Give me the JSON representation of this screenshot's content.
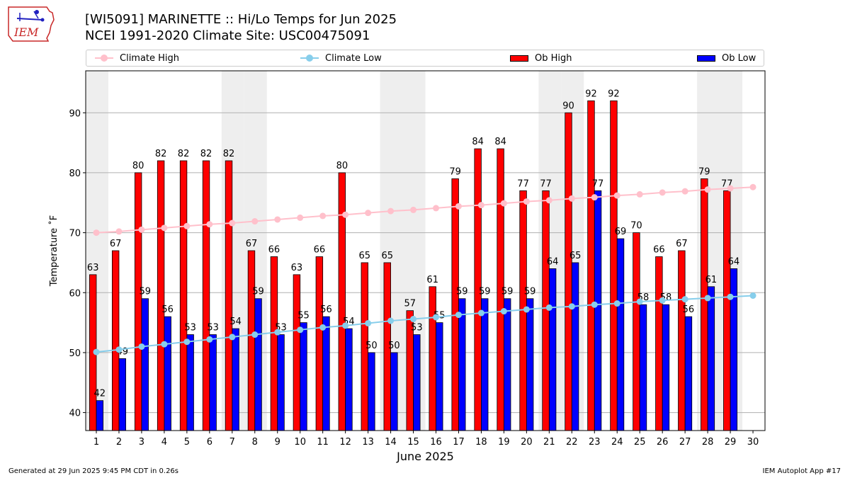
{
  "header": {
    "title": "[WI5091] MARINETTE :: Hi/Lo Temps for Jun 2025",
    "subtitle": "NCEI 1991-2020 Climate Site: USC00475091",
    "logo_text": "IEM"
  },
  "legend": {
    "climate_high": "Climate High",
    "climate_low": "Climate Low",
    "ob_high": "Ob High",
    "ob_low": "Ob Low"
  },
  "footer": {
    "left": "Generated at 29 Jun 2025 9:45 PM CDT in 0.26s",
    "right": "IEM Autoplot App #17"
  },
  "colors": {
    "ob_high": "#ff0000",
    "ob_low": "#0000ff",
    "climate_high": "#ffc0cb",
    "climate_low": "#87ceeb",
    "weekend_band": "#eeeeee",
    "grid": "#b0b0b0"
  },
  "chart_data": {
    "type": "bar",
    "xlabel": "June 2025",
    "ylabel": "Temperature ˚F",
    "ylim": [
      37,
      97
    ],
    "yticks": [
      40,
      50,
      60,
      70,
      80,
      90
    ],
    "grid": true,
    "legend_position": "top",
    "categories": [
      1,
      2,
      3,
      4,
      5,
      6,
      7,
      8,
      9,
      10,
      11,
      12,
      13,
      14,
      15,
      16,
      17,
      18,
      19,
      20,
      21,
      22,
      23,
      24,
      25,
      26,
      27,
      28,
      29,
      30
    ],
    "weekend_days": [
      1,
      7,
      8,
      14,
      15,
      21,
      22,
      28,
      29
    ],
    "series": [
      {
        "name": "Ob High",
        "kind": "bar",
        "values": [
          63,
          67,
          80,
          82,
          82,
          82,
          82,
          67,
          66,
          63,
          66,
          80,
          65,
          65,
          57,
          61,
          79,
          84,
          84,
          77,
          77,
          90,
          92,
          92,
          70,
          66,
          67,
          79,
          77,
          null
        ]
      },
      {
        "name": "Ob Low",
        "kind": "bar",
        "values": [
          42,
          49,
          59,
          56,
          53,
          53,
          54,
          59,
          53,
          55,
          56,
          54,
          50,
          50,
          53,
          55,
          59,
          59,
          59,
          59,
          64,
          65,
          77,
          69,
          58,
          58,
          56,
          61,
          64,
          null
        ]
      },
      {
        "name": "Climate High",
        "kind": "line",
        "values": [
          70.0,
          70.2,
          70.5,
          70.8,
          71.1,
          71.4,
          71.6,
          71.9,
          72.2,
          72.5,
          72.8,
          73.0,
          73.3,
          73.6,
          73.8,
          74.1,
          74.4,
          74.6,
          74.9,
          75.2,
          75.4,
          75.7,
          75.9,
          76.2,
          76.4,
          76.7,
          76.9,
          77.2,
          77.4,
          77.6
        ]
      },
      {
        "name": "Climate Low",
        "kind": "line",
        "values": [
          50.1,
          50.5,
          51.0,
          51.4,
          51.8,
          52.2,
          52.6,
          53.0,
          53.4,
          53.8,
          54.2,
          54.5,
          54.9,
          55.3,
          55.6,
          55.9,
          56.3,
          56.6,
          56.9,
          57.2,
          57.5,
          57.7,
          58.0,
          58.2,
          58.5,
          58.7,
          58.9,
          59.1,
          59.3,
          59.5
        ]
      }
    ]
  }
}
